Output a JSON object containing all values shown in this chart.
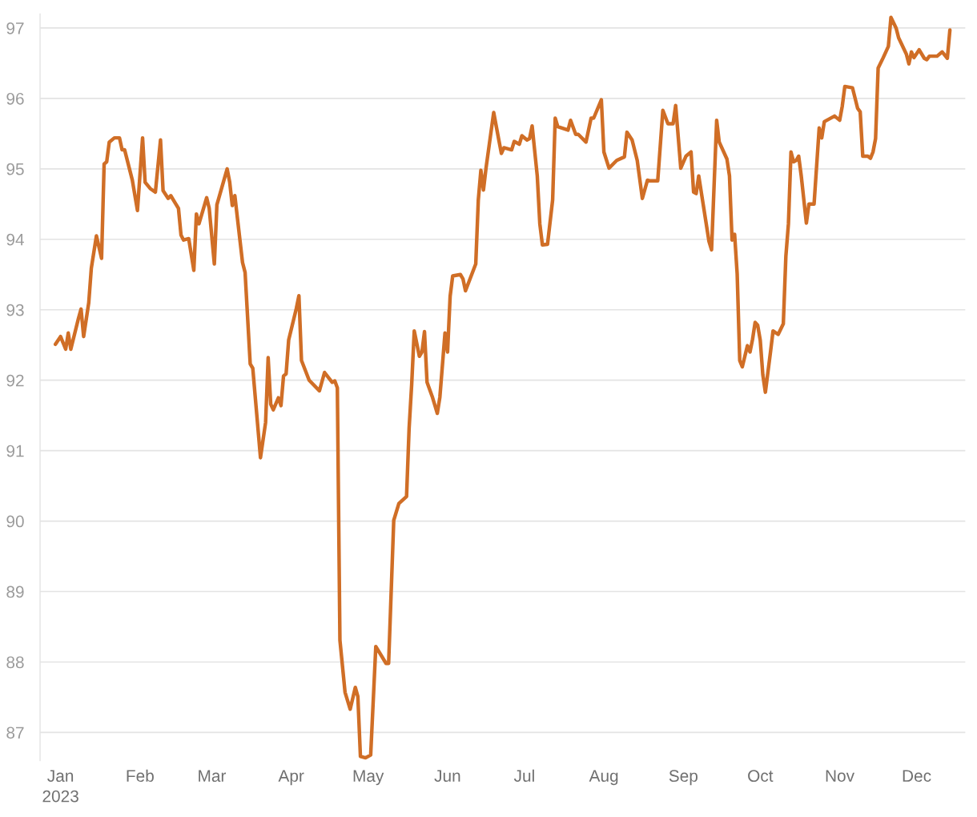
{
  "chart_data": {
    "type": "line",
    "color": "#d06e26",
    "grid": "y",
    "line_style": "solid",
    "marker": "none",
    "x": [
      "2022-12-30",
      "2023-01-01",
      "2023-01-03",
      "2023-01-04",
      "2023-01-05",
      "2023-01-08",
      "2023-01-09",
      "2023-01-10",
      "2023-01-12",
      "2023-01-13",
      "2023-01-15",
      "2023-01-17",
      "2023-01-18",
      "2023-01-19",
      "2023-01-20",
      "2023-01-22",
      "2023-01-24",
      "2023-01-25",
      "2023-01-26",
      "2023-01-29",
      "2023-01-31",
      "2023-02-02",
      "2023-02-03",
      "2023-02-05",
      "2023-02-07",
      "2023-02-09",
      "2023-02-10",
      "2023-02-12",
      "2023-02-13",
      "2023-02-15",
      "2023-02-16",
      "2023-02-17",
      "2023-02-18",
      "2023-02-20",
      "2023-02-22",
      "2023-02-23",
      "2023-02-24",
      "2023-02-27",
      "2023-02-28",
      "2023-03-02",
      "2023-03-03",
      "2023-03-07",
      "2023-03-08",
      "2023-03-09",
      "2023-03-10",
      "2023-03-13",
      "2023-03-14",
      "2023-03-16",
      "2023-03-17",
      "2023-03-20",
      "2023-03-22",
      "2023-03-23",
      "2023-03-24",
      "2023-03-25",
      "2023-03-27",
      "2023-03-28",
      "2023-03-29",
      "2023-03-30",
      "2023-03-31",
      "2023-04-03",
      "2023-04-04",
      "2023-04-05",
      "2023-04-08",
      "2023-04-12",
      "2023-04-14",
      "2023-04-17",
      "2023-04-18",
      "2023-04-19",
      "2023-04-20",
      "2023-04-22",
      "2023-04-24",
      "2023-04-26",
      "2023-04-27",
      "2023-04-28",
      "2023-04-30",
      "2023-05-02",
      "2023-05-04",
      "2023-05-08",
      "2023-05-09",
      "2023-05-11",
      "2023-05-13",
      "2023-05-16",
      "2023-05-17",
      "2023-05-18",
      "2023-05-19",
      "2023-05-21",
      "2023-05-22",
      "2023-05-23",
      "2023-05-24",
      "2023-05-26",
      "2023-05-28",
      "2023-05-29",
      "2023-05-31",
      "2023-06-01",
      "2023-06-02",
      "2023-06-03",
      "2023-06-06",
      "2023-06-07",
      "2023-06-08",
      "2023-06-12",
      "2023-06-13",
      "2023-06-14",
      "2023-06-15",
      "2023-06-16",
      "2023-06-19",
      "2023-06-21",
      "2023-06-22",
      "2023-06-23",
      "2023-06-26",
      "2023-06-27",
      "2023-06-29",
      "2023-06-30",
      "2023-07-02",
      "2023-07-03",
      "2023-07-04",
      "2023-07-06",
      "2023-07-07",
      "2023-07-08",
      "2023-07-10",
      "2023-07-12",
      "2023-07-13",
      "2023-07-14",
      "2023-07-18",
      "2023-07-19",
      "2023-07-21",
      "2023-07-22",
      "2023-07-25",
      "2023-07-27",
      "2023-07-28",
      "2023-07-31",
      "2023-08-01",
      "2023-08-03",
      "2023-08-06",
      "2023-08-09",
      "2023-08-10",
      "2023-08-12",
      "2023-08-14",
      "2023-08-16",
      "2023-08-18",
      "2023-08-19",
      "2023-08-22",
      "2023-08-24",
      "2023-08-26",
      "2023-08-28",
      "2023-08-29",
      "2023-08-31",
      "2023-09-02",
      "2023-09-04",
      "2023-09-05",
      "2023-09-06",
      "2023-09-07",
      "2023-09-11",
      "2023-09-12",
      "2023-09-14",
      "2023-09-15",
      "2023-09-18",
      "2023-09-19",
      "2023-09-20",
      "2023-09-21",
      "2023-09-22",
      "2023-09-23",
      "2023-09-24",
      "2023-09-26",
      "2023-09-27",
      "2023-09-28",
      "2023-09-29",
      "2023-09-30",
      "2023-10-01",
      "2023-10-02",
      "2023-10-03",
      "2023-10-05",
      "2023-10-06",
      "2023-10-08",
      "2023-10-10",
      "2023-10-11",
      "2023-10-12",
      "2023-10-13",
      "2023-10-14",
      "2023-10-15",
      "2023-10-16",
      "2023-10-17",
      "2023-10-19",
      "2023-10-20",
      "2023-10-22",
      "2023-10-24",
      "2023-10-25",
      "2023-10-26",
      "2023-10-30",
      "2023-11-01",
      "2023-11-02",
      "2023-11-03",
      "2023-11-06",
      "2023-11-08",
      "2023-11-09",
      "2023-11-10",
      "2023-11-12",
      "2023-11-13",
      "2023-11-14",
      "2023-11-15",
      "2023-11-16",
      "2023-11-18",
      "2023-11-20",
      "2023-11-21",
      "2023-11-23",
      "2023-11-24",
      "2023-11-27",
      "2023-11-28",
      "2023-11-29",
      "2023-11-30",
      "2023-12-02",
      "2023-12-04",
      "2023-12-05",
      "2023-12-06",
      "2023-12-09",
      "2023-12-11",
      "2023-12-13",
      "2023-12-14"
    ],
    "values": [
      92.51,
      92.62,
      92.44,
      92.67,
      92.44,
      92.88,
      93.01,
      92.62,
      93.1,
      93.59,
      94.05,
      93.73,
      95.07,
      95.1,
      95.38,
      95.44,
      95.44,
      95.27,
      95.27,
      94.84,
      94.41,
      95.44,
      94.81,
      94.72,
      94.67,
      95.41,
      94.69,
      94.58,
      94.62,
      94.5,
      94.44,
      94.06,
      93.99,
      94.01,
      93.56,
      94.36,
      94.22,
      94.59,
      94.44,
      93.65,
      94.49,
      95.0,
      94.81,
      94.48,
      94.62,
      93.67,
      93.53,
      92.23,
      92.17,
      90.9,
      91.4,
      92.32,
      91.66,
      91.58,
      91.75,
      91.64,
      92.06,
      92.09,
      92.57,
      93.02,
      93.2,
      92.28,
      92.0,
      91.85,
      92.11,
      91.97,
      91.99,
      91.89,
      88.31,
      87.57,
      87.33,
      87.64,
      87.51,
      86.66,
      86.64,
      86.68,
      88.22,
      87.98,
      87.98,
      90.01,
      90.25,
      90.35,
      91.32,
      91.94,
      92.7,
      92.34,
      92.4,
      92.69,
      91.97,
      91.77,
      91.53,
      91.76,
      92.67,
      92.4,
      93.19,
      93.48,
      93.5,
      93.44,
      93.27,
      93.65,
      94.56,
      94.98,
      94.7,
      95.01,
      95.8,
      95.41,
      95.22,
      95.3,
      95.27,
      95.39,
      95.35,
      95.47,
      95.41,
      95.43,
      95.61,
      94.9,
      94.22,
      93.92,
      93.93,
      94.56,
      95.72,
      95.6,
      95.55,
      95.69,
      95.49,
      95.49,
      95.38,
      95.72,
      95.72,
      95.98,
      95.24,
      95.01,
      95.12,
      95.17,
      95.52,
      95.41,
      95.12,
      94.58,
      94.84,
      94.83,
      94.83,
      95.83,
      95.64,
      95.64,
      95.9,
      95.01,
      95.18,
      95.24,
      94.67,
      94.65,
      94.9,
      93.97,
      93.85,
      95.69,
      95.38,
      95.14,
      94.9,
      93.99,
      94.07,
      93.51,
      92.28,
      92.19,
      92.49,
      92.4,
      92.58,
      92.82,
      92.78,
      92.57,
      92.08,
      91.83,
      92.4,
      92.7,
      92.65,
      92.8,
      93.76,
      94.22,
      95.24,
      95.1,
      95.12,
      95.18,
      94.9,
      94.23,
      94.5,
      94.5,
      95.58,
      95.44,
      95.67,
      95.75,
      95.69,
      95.89,
      96.17,
      96.15,
      95.86,
      95.81,
      95.18,
      95.18,
      95.15,
      95.24,
      95.43,
      96.43,
      96.58,
      96.74,
      97.15,
      97.0,
      96.86,
      96.63,
      96.49,
      96.66,
      96.58,
      96.69,
      96.57,
      96.55,
      96.6,
      96.6,
      96.66,
      96.57,
      96.97
    ],
    "xlim": [
      "2022-12-24",
      "2023-12-20"
    ],
    "ylim": [
      86.6,
      97.2
    ],
    "xticks": [
      {
        "value": "2023-01-01",
        "label": "Jan\n2023"
      },
      {
        "value": "2023-02-01",
        "label": "Feb"
      },
      {
        "value": "2023-03-01",
        "label": "Mar"
      },
      {
        "value": "2023-04-01",
        "label": "Apr"
      },
      {
        "value": "2023-05-01",
        "label": "May"
      },
      {
        "value": "2023-06-01",
        "label": "Jun"
      },
      {
        "value": "2023-07-01",
        "label": "Jul"
      },
      {
        "value": "2023-08-01",
        "label": "Aug"
      },
      {
        "value": "2023-09-01",
        "label": "Sep"
      },
      {
        "value": "2023-10-01",
        "label": "Oct"
      },
      {
        "value": "2023-11-01",
        "label": "Nov"
      },
      {
        "value": "2023-12-01",
        "label": "Dec"
      }
    ],
    "yticks": [
      87,
      88,
      89,
      90,
      91,
      92,
      93,
      94,
      95,
      96,
      97
    ]
  }
}
